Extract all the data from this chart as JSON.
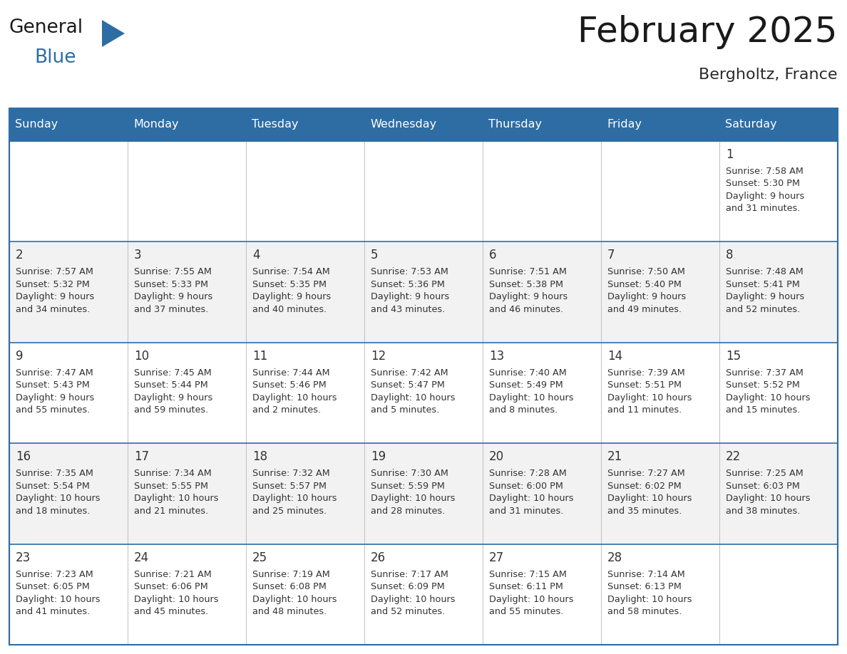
{
  "title": "February 2025",
  "subtitle": "Bergholtz, France",
  "header_bg": "#2E6DA4",
  "header_text_color": "#FFFFFF",
  "cell_bg_white": "#FFFFFF",
  "cell_bg_gray": "#F2F2F2",
  "border_color": "#2E6DA4",
  "grid_line_color": "#AAAAAA",
  "text_color": "#333333",
  "day_headers": [
    "Sunday",
    "Monday",
    "Tuesday",
    "Wednesday",
    "Thursday",
    "Friday",
    "Saturday"
  ],
  "row_backgrounds": [
    1,
    0,
    1,
    0,
    1
  ],
  "days": [
    {
      "date": 1,
      "col": 6,
      "row": 0,
      "sunrise": "7:58 AM",
      "sunset": "5:30 PM",
      "daylight": "9 hours and 31 minutes"
    },
    {
      "date": 2,
      "col": 0,
      "row": 1,
      "sunrise": "7:57 AM",
      "sunset": "5:32 PM",
      "daylight": "9 hours and 34 minutes"
    },
    {
      "date": 3,
      "col": 1,
      "row": 1,
      "sunrise": "7:55 AM",
      "sunset": "5:33 PM",
      "daylight": "9 hours and 37 minutes"
    },
    {
      "date": 4,
      "col": 2,
      "row": 1,
      "sunrise": "7:54 AM",
      "sunset": "5:35 PM",
      "daylight": "9 hours and 40 minutes"
    },
    {
      "date": 5,
      "col": 3,
      "row": 1,
      "sunrise": "7:53 AM",
      "sunset": "5:36 PM",
      "daylight": "9 hours and 43 minutes"
    },
    {
      "date": 6,
      "col": 4,
      "row": 1,
      "sunrise": "7:51 AM",
      "sunset": "5:38 PM",
      "daylight": "9 hours and 46 minutes"
    },
    {
      "date": 7,
      "col": 5,
      "row": 1,
      "sunrise": "7:50 AM",
      "sunset": "5:40 PM",
      "daylight": "9 hours and 49 minutes"
    },
    {
      "date": 8,
      "col": 6,
      "row": 1,
      "sunrise": "7:48 AM",
      "sunset": "5:41 PM",
      "daylight": "9 hours and 52 minutes"
    },
    {
      "date": 9,
      "col": 0,
      "row": 2,
      "sunrise": "7:47 AM",
      "sunset": "5:43 PM",
      "daylight": "9 hours and 55 minutes"
    },
    {
      "date": 10,
      "col": 1,
      "row": 2,
      "sunrise": "7:45 AM",
      "sunset": "5:44 PM",
      "daylight": "9 hours and 59 minutes"
    },
    {
      "date": 11,
      "col": 2,
      "row": 2,
      "sunrise": "7:44 AM",
      "sunset": "5:46 PM",
      "daylight": "10 hours and 2 minutes"
    },
    {
      "date": 12,
      "col": 3,
      "row": 2,
      "sunrise": "7:42 AM",
      "sunset": "5:47 PM",
      "daylight": "10 hours and 5 minutes"
    },
    {
      "date": 13,
      "col": 4,
      "row": 2,
      "sunrise": "7:40 AM",
      "sunset": "5:49 PM",
      "daylight": "10 hours and 8 minutes"
    },
    {
      "date": 14,
      "col": 5,
      "row": 2,
      "sunrise": "7:39 AM",
      "sunset": "5:51 PM",
      "daylight": "10 hours and 11 minutes"
    },
    {
      "date": 15,
      "col": 6,
      "row": 2,
      "sunrise": "7:37 AM",
      "sunset": "5:52 PM",
      "daylight": "10 hours and 15 minutes"
    },
    {
      "date": 16,
      "col": 0,
      "row": 3,
      "sunrise": "7:35 AM",
      "sunset": "5:54 PM",
      "daylight": "10 hours and 18 minutes"
    },
    {
      "date": 17,
      "col": 1,
      "row": 3,
      "sunrise": "7:34 AM",
      "sunset": "5:55 PM",
      "daylight": "10 hours and 21 minutes"
    },
    {
      "date": 18,
      "col": 2,
      "row": 3,
      "sunrise": "7:32 AM",
      "sunset": "5:57 PM",
      "daylight": "10 hours and 25 minutes"
    },
    {
      "date": 19,
      "col": 3,
      "row": 3,
      "sunrise": "7:30 AM",
      "sunset": "5:59 PM",
      "daylight": "10 hours and 28 minutes"
    },
    {
      "date": 20,
      "col": 4,
      "row": 3,
      "sunrise": "7:28 AM",
      "sunset": "6:00 PM",
      "daylight": "10 hours and 31 minutes"
    },
    {
      "date": 21,
      "col": 5,
      "row": 3,
      "sunrise": "7:27 AM",
      "sunset": "6:02 PM",
      "daylight": "10 hours and 35 minutes"
    },
    {
      "date": 22,
      "col": 6,
      "row": 3,
      "sunrise": "7:25 AM",
      "sunset": "6:03 PM",
      "daylight": "10 hours and 38 minutes"
    },
    {
      "date": 23,
      "col": 0,
      "row": 4,
      "sunrise": "7:23 AM",
      "sunset": "6:05 PM",
      "daylight": "10 hours and 41 minutes"
    },
    {
      "date": 24,
      "col": 1,
      "row": 4,
      "sunrise": "7:21 AM",
      "sunset": "6:06 PM",
      "daylight": "10 hours and 45 minutes"
    },
    {
      "date": 25,
      "col": 2,
      "row": 4,
      "sunrise": "7:19 AM",
      "sunset": "6:08 PM",
      "daylight": "10 hours and 48 minutes"
    },
    {
      "date": 26,
      "col": 3,
      "row": 4,
      "sunrise": "7:17 AM",
      "sunset": "6:09 PM",
      "daylight": "10 hours and 52 minutes"
    },
    {
      "date": 27,
      "col": 4,
      "row": 4,
      "sunrise": "7:15 AM",
      "sunset": "6:11 PM",
      "daylight": "10 hours and 55 minutes"
    },
    {
      "date": 28,
      "col": 5,
      "row": 4,
      "sunrise": "7:14 AM",
      "sunset": "6:13 PM",
      "daylight": "10 hours and 58 minutes"
    }
  ],
  "num_rows": 5,
  "num_cols": 7,
  "logo_text1": "General",
  "logo_text2": "Blue",
  "logo_color1": "#1a1a1a",
  "logo_color2": "#2E6DA4",
  "fig_width": 11.88,
  "fig_height": 9.18,
  "dpi": 100
}
